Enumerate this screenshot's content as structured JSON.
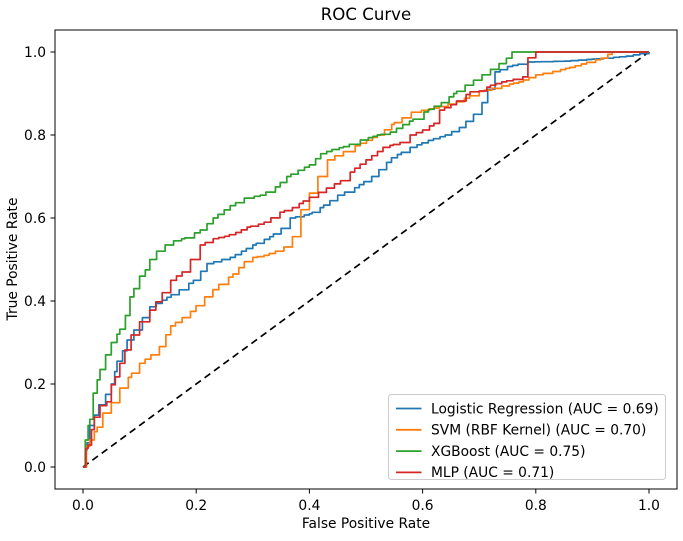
{
  "chart_data": {
    "type": "line",
    "title": "ROC Curve",
    "xlabel": "False Positive Rate",
    "ylabel": "True Positive Rate",
    "xticks": [
      0.0,
      0.2,
      0.4,
      0.6,
      0.8,
      1.0
    ],
    "yticks": [
      0.0,
      0.2,
      0.4,
      0.6,
      0.8,
      1.0
    ],
    "xlim": [
      -0.05,
      1.05
    ],
    "ylim": [
      -0.05,
      1.05
    ],
    "grid": false,
    "legend_position": "lower right",
    "reference_line": {
      "name": "chance-diagonal",
      "color": "#000000",
      "style": "dashed",
      "points": [
        [
          0,
          0
        ],
        [
          1,
          1
        ]
      ]
    },
    "series": [
      {
        "name": "Logistic Regression (AUC = 0.69)",
        "model": "Logistic Regression",
        "auc": 0.69,
        "color": "#1f77b4",
        "points": [
          [
            0,
            0
          ],
          [
            0.004,
            0.04
          ],
          [
            0.007,
            0.058
          ],
          [
            0.012,
            0.1
          ],
          [
            0.02,
            0.125
          ],
          [
            0.028,
            0.15
          ],
          [
            0.04,
            0.175
          ],
          [
            0.05,
            0.2
          ],
          [
            0.056,
            0.23
          ],
          [
            0.06,
            0.255
          ],
          [
            0.07,
            0.28
          ],
          [
            0.078,
            0.306
          ],
          [
            0.09,
            0.33
          ],
          [
            0.105,
            0.36
          ],
          [
            0.118,
            0.386
          ],
          [
            0.14,
            0.402
          ],
          [
            0.17,
            0.427
          ],
          [
            0.195,
            0.45
          ],
          [
            0.219,
            0.49
          ],
          [
            0.245,
            0.5
          ],
          [
            0.26,
            0.505
          ],
          [
            0.28,
            0.52
          ],
          [
            0.3,
            0.535
          ],
          [
            0.33,
            0.555
          ],
          [
            0.35,
            0.575
          ],
          [
            0.366,
            0.6
          ],
          [
            0.4,
            0.61
          ],
          [
            0.419,
            0.625
          ],
          [
            0.45,
            0.655
          ],
          [
            0.48,
            0.673
          ],
          [
            0.51,
            0.7
          ],
          [
            0.545,
            0.745
          ],
          [
            0.578,
            0.77
          ],
          [
            0.61,
            0.787
          ],
          [
            0.64,
            0.8
          ],
          [
            0.665,
            0.818
          ],
          [
            0.69,
            0.85
          ],
          [
            0.705,
            0.878
          ],
          [
            0.715,
            0.91
          ],
          [
            0.728,
            0.952
          ],
          [
            0.75,
            0.965
          ],
          [
            0.786,
            0.976
          ],
          [
            0.85,
            0.978
          ],
          [
            0.92,
            0.985
          ],
          [
            0.96,
            0.99
          ],
          [
            1,
            1
          ]
        ]
      },
      {
        "name": "SVM (RBF Kernel) (AUC = 0.70)",
        "model": "SVM (RBF Kernel)",
        "auc": 0.7,
        "color": "#ff7f0e",
        "points": [
          [
            0,
            0
          ],
          [
            0.006,
            0.05
          ],
          [
            0.012,
            0.065
          ],
          [
            0.02,
            0.085
          ],
          [
            0.025,
            0.096
          ],
          [
            0.035,
            0.13
          ],
          [
            0.05,
            0.155
          ],
          [
            0.065,
            0.19
          ],
          [
            0.08,
            0.216
          ],
          [
            0.1,
            0.25
          ],
          [
            0.12,
            0.27
          ],
          [
            0.135,
            0.29
          ],
          [
            0.155,
            0.34
          ],
          [
            0.175,
            0.36
          ],
          [
            0.19,
            0.375
          ],
          [
            0.215,
            0.41
          ],
          [
            0.24,
            0.44
          ],
          [
            0.265,
            0.465
          ],
          [
            0.285,
            0.495
          ],
          [
            0.3,
            0.505
          ],
          [
            0.32,
            0.51
          ],
          [
            0.34,
            0.52
          ],
          [
            0.355,
            0.53
          ],
          [
            0.37,
            0.555
          ],
          [
            0.385,
            0.62
          ],
          [
            0.4,
            0.66
          ],
          [
            0.415,
            0.7
          ],
          [
            0.432,
            0.74
          ],
          [
            0.445,
            0.75
          ],
          [
            0.46,
            0.76
          ],
          [
            0.49,
            0.78
          ],
          [
            0.52,
            0.8
          ],
          [
            0.55,
            0.83
          ],
          [
            0.58,
            0.855
          ],
          [
            0.62,
            0.865
          ],
          [
            0.66,
            0.88
          ],
          [
            0.7,
            0.905
          ],
          [
            0.74,
            0.918
          ],
          [
            0.77,
            0.928
          ],
          [
            0.8,
            0.945
          ],
          [
            0.83,
            0.953
          ],
          [
            0.86,
            0.963
          ],
          [
            0.89,
            0.975
          ],
          [
            0.915,
            0.985
          ],
          [
            0.935,
            1
          ],
          [
            1,
            1
          ]
        ]
      },
      {
        "name": "XGBoost (AUC = 0.75)",
        "model": "XGBoost",
        "auc": 0.75,
        "color": "#2ca02c",
        "points": [
          [
            0,
            0
          ],
          [
            0.004,
            0.065
          ],
          [
            0.009,
            0.1
          ],
          [
            0.012,
            0.115
          ],
          [
            0.018,
            0.178
          ],
          [
            0.025,
            0.21
          ],
          [
            0.03,
            0.235
          ],
          [
            0.04,
            0.27
          ],
          [
            0.05,
            0.3
          ],
          [
            0.06,
            0.32
          ],
          [
            0.065,
            0.332
          ],
          [
            0.075,
            0.365
          ],
          [
            0.083,
            0.41
          ],
          [
            0.09,
            0.43
          ],
          [
            0.1,
            0.46
          ],
          [
            0.11,
            0.475
          ],
          [
            0.118,
            0.5
          ],
          [
            0.13,
            0.52
          ],
          [
            0.145,
            0.535
          ],
          [
            0.16,
            0.545
          ],
          [
            0.18,
            0.552
          ],
          [
            0.207,
            0.571
          ],
          [
            0.23,
            0.6
          ],
          [
            0.26,
            0.63
          ],
          [
            0.285,
            0.648
          ],
          [
            0.313,
            0.655
          ],
          [
            0.34,
            0.675
          ],
          [
            0.36,
            0.7
          ],
          [
            0.38,
            0.715
          ],
          [
            0.4,
            0.728
          ],
          [
            0.42,
            0.755
          ],
          [
            0.44,
            0.765
          ],
          [
            0.46,
            0.772
          ],
          [
            0.49,
            0.788
          ],
          [
            0.52,
            0.8
          ],
          [
            0.543,
            0.807
          ],
          [
            0.565,
            0.825
          ],
          [
            0.583,
            0.838
          ],
          [
            0.61,
            0.862
          ],
          [
            0.633,
            0.878
          ],
          [
            0.655,
            0.9
          ],
          [
            0.675,
            0.92
          ],
          [
            0.69,
            0.932
          ],
          [
            0.705,
            0.945
          ],
          [
            0.72,
            0.958
          ],
          [
            0.735,
            0.972
          ],
          [
            0.748,
            0.985
          ],
          [
            0.758,
            1
          ],
          [
            1,
            1
          ]
        ]
      },
      {
        "name": "MLP (AUC = 0.71)",
        "model": "MLP",
        "auc": 0.71,
        "color": "#d62728",
        "points": [
          [
            0,
            0
          ],
          [
            0.005,
            0.045
          ],
          [
            0.009,
            0.053
          ],
          [
            0.015,
            0.09
          ],
          [
            0.02,
            0.12
          ],
          [
            0.03,
            0.148
          ],
          [
            0.042,
            0.157
          ],
          [
            0.05,
            0.198
          ],
          [
            0.057,
            0.217
          ],
          [
            0.065,
            0.25
          ],
          [
            0.074,
            0.282
          ],
          [
            0.085,
            0.318
          ],
          [
            0.1,
            0.35
          ],
          [
            0.118,
            0.378
          ],
          [
            0.14,
            0.42
          ],
          [
            0.155,
            0.45
          ],
          [
            0.175,
            0.47
          ],
          [
            0.19,
            0.5
          ],
          [
            0.207,
            0.535
          ],
          [
            0.23,
            0.55
          ],
          [
            0.25,
            0.556
          ],
          [
            0.27,
            0.565
          ],
          [
            0.29,
            0.578
          ],
          [
            0.31,
            0.585
          ],
          [
            0.32,
            0.59
          ],
          [
            0.348,
            0.614
          ],
          [
            0.37,
            0.625
          ],
          [
            0.4,
            0.65
          ],
          [
            0.43,
            0.672
          ],
          [
            0.455,
            0.69
          ],
          [
            0.48,
            0.72
          ],
          [
            0.5,
            0.74
          ],
          [
            0.53,
            0.77
          ],
          [
            0.56,
            0.782
          ],
          [
            0.578,
            0.8
          ],
          [
            0.6,
            0.812
          ],
          [
            0.62,
            0.828
          ],
          [
            0.63,
            0.86
          ],
          [
            0.65,
            0.873
          ],
          [
            0.684,
            0.904
          ],
          [
            0.7,
            0.906
          ],
          [
            0.72,
            0.92
          ],
          [
            0.74,
            0.928
          ],
          [
            0.76,
            0.934
          ],
          [
            0.777,
            0.94
          ],
          [
            0.786,
            0.986
          ],
          [
            0.8,
            1
          ],
          [
            1,
            1
          ]
        ]
      }
    ]
  }
}
